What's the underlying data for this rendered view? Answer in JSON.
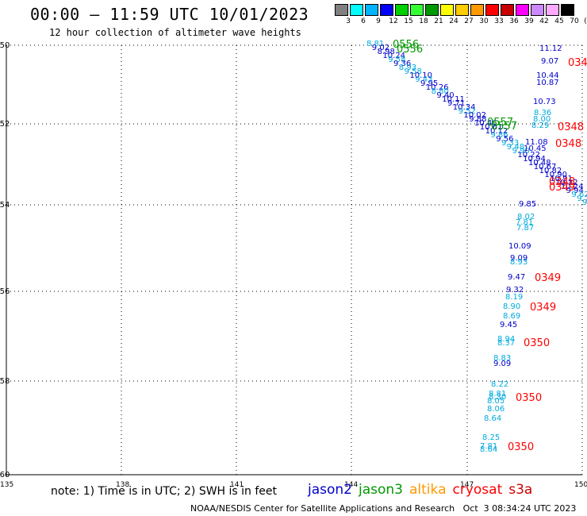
{
  "header": {
    "title": "00:00 – 11:59 UTC 10/01/2023",
    "subtitle": "12 hour collection of altimeter wave heights"
  },
  "scale": {
    "colors": [
      "#808080",
      "#00ffff",
      "#00b4ff",
      "#0000ff",
      "#00d000",
      "#33ff33",
      "#009900",
      "#ffff00",
      "#ffcc00",
      "#ff9900",
      "#ff0000",
      "#c80000",
      "#ff00ff",
      "#cc88ff",
      "#ffaaff",
      "#000000"
    ],
    "labels": [
      "3",
      "6",
      "9",
      "12",
      "15",
      "18",
      "21",
      "24",
      "27",
      "30",
      "33",
      "36",
      "39",
      "42",
      "45",
      "70",
      "(ft)"
    ]
  },
  "axes": {
    "lon_labels": [
      "135",
      "138",
      "141",
      "144",
      "147",
      "150"
    ],
    "lat_labels": [
      "-50",
      "-52",
      "-54",
      "-56",
      "-58",
      "-60"
    ]
  },
  "observations": [
    {
      "v": "8.81",
      "c": "#00aadd"
    },
    {
      "v": "9.02",
      "c": "#0000cc"
    },
    {
      "v": "8.98",
      "c": "#0000cc"
    },
    {
      "v": "10.24",
      "c": "#0000cc"
    },
    {
      "v": "9.58",
      "c": "#00aadd"
    },
    {
      "v": "9.36",
      "c": "#0000cc"
    },
    {
      "v": "8.93",
      "c": "#00aadd"
    },
    {
      "v": "9.58",
      "c": "#00aadd"
    },
    {
      "v": "10.10",
      "c": "#0000cc"
    },
    {
      "v": "9.43",
      "c": "#00aadd"
    },
    {
      "v": "9.95",
      "c": "#0000cc"
    },
    {
      "v": "10.26",
      "c": "#0000cc"
    },
    {
      "v": "8.80",
      "c": "#00aadd"
    },
    {
      "v": "9.40",
      "c": "#0000cc"
    },
    {
      "v": "10.11",
      "c": "#0000cc"
    },
    {
      "v": "9.71",
      "c": "#0000cc"
    },
    {
      "v": "10.34",
      "c": "#0000cc"
    },
    {
      "v": "9.52",
      "c": "#00aadd"
    },
    {
      "v": "10.02",
      "c": "#0000cc"
    },
    {
      "v": "9.88",
      "c": "#0000cc"
    },
    {
      "v": "10.46",
      "c": "#0000cc"
    },
    {
      "v": "10.61",
      "c": "#0000cc"
    },
    {
      "v": "10.12",
      "c": "#0000cc"
    },
    {
      "v": "9.86",
      "c": "#00aadd"
    },
    {
      "v": "9.56",
      "c": "#0000cc"
    },
    {
      "v": "9.33",
      "c": "#00aadd"
    },
    {
      "v": "9.48",
      "c": "#00aadd"
    },
    {
      "v": "9.90",
      "c": "#00aadd"
    },
    {
      "v": "10.22",
      "c": "#0000cc"
    },
    {
      "v": "10.94",
      "c": "#0000cc"
    },
    {
      "v": "10.48",
      "c": "#0000cc"
    },
    {
      "v": "10.67",
      "c": "#0000cc"
    },
    {
      "v": "10.82",
      "c": "#0000cc"
    },
    {
      "v": "10.90",
      "c": "#0000cc"
    },
    {
      "v": "10.91",
      "c": "#0000cc"
    },
    {
      "v": "10.32",
      "c": "#0000cc"
    },
    {
      "v": "10.24",
      "c": "#0000cc"
    },
    {
      "v": "9.94",
      "c": "#0000cc"
    },
    {
      "v": "9.62",
      "c": "#00aadd"
    },
    {
      "v": "9.73",
      "c": "#00aadd"
    },
    {
      "v": "9.8",
      "c": "#00aadd"
    },
    {
      "v": "11.12",
      "c": "#0000cc"
    },
    {
      "v": "9.07",
      "c": "#0000cc"
    },
    {
      "v": "10.44",
      "c": "#0000cc"
    },
    {
      "v": "10.87",
      "c": "#0000cc"
    },
    {
      "v": "10.73",
      "c": "#0000cc"
    },
    {
      "v": "8.36",
      "c": "#00aadd"
    },
    {
      "v": "8.00",
      "c": "#00aadd"
    },
    {
      "v": "8.29",
      "c": "#00aadd"
    },
    {
      "v": "11.08",
      "c": "#0000cc"
    },
    {
      "v": "10.45",
      "c": "#0000cc"
    },
    {
      "v": "9.85",
      "c": "#0000cc"
    },
    {
      "v": "8.02",
      "c": "#00aadd"
    },
    {
      "v": "7.81",
      "c": "#00aadd"
    },
    {
      "v": "7.87",
      "c": "#00aadd"
    },
    {
      "v": "10.09",
      "c": "#0000cc"
    },
    {
      "v": "9.09",
      "c": "#0000cc"
    },
    {
      "v": "8.93",
      "c": "#00aadd"
    },
    {
      "v": "9.47",
      "c": "#0000cc"
    },
    {
      "v": "9.32",
      "c": "#0000cc"
    },
    {
      "v": "8.19",
      "c": "#00aadd"
    },
    {
      "v": "8.90",
      "c": "#00aadd"
    },
    {
      "v": "8.69",
      "c": "#00aadd"
    },
    {
      "v": "9.45",
      "c": "#0000cc"
    },
    {
      "v": "8.94",
      "c": "#00aadd"
    },
    {
      "v": "8.37",
      "c": "#00aadd"
    },
    {
      "v": "8.83",
      "c": "#00aadd"
    },
    {
      "v": "9.09",
      "c": "#0000cc"
    },
    {
      "v": "8.22",
      "c": "#00aadd"
    },
    {
      "v": "8.81",
      "c": "#00aadd"
    },
    {
      "v": "8.30",
      "c": "#00aadd"
    },
    {
      "v": "8.05",
      "c": "#00aadd"
    },
    {
      "v": "8.06",
      "c": "#00aadd"
    },
    {
      "v": "8.64",
      "c": "#00aadd"
    },
    {
      "v": "8.25",
      "c": "#00aadd"
    },
    {
      "v": "7.81",
      "c": "#00aadd"
    },
    {
      "v": "8.64",
      "c": "#00aadd"
    }
  ],
  "cycles": [
    {
      "v": "0556",
      "c": "#009900"
    },
    {
      "v": "0556",
      "c": "#009900"
    },
    {
      "v": "0557",
      "c": "#009900"
    },
    {
      "v": "0557",
      "c": "#009900"
    },
    {
      "v": "034",
      "c": "#ff0000"
    },
    {
      "v": "0348",
      "c": "#ff0000"
    },
    {
      "v": "0348",
      "c": "#ff0000"
    },
    {
      "v": "0348",
      "c": "#ff0000"
    },
    {
      "v": "0349",
      "c": "#ff0000"
    },
    {
      "v": "0349",
      "c": "#ff0000"
    },
    {
      "v": "0349",
      "c": "#ff0000"
    },
    {
      "v": "0350",
      "c": "#ff0000"
    },
    {
      "v": "0350",
      "c": "#ff0000"
    },
    {
      "v": "0350",
      "c": "#ff0000"
    }
  ],
  "footer": {
    "note": "note: 1) Time is in UTC; 2) SWH is in feet",
    "satellites": [
      {
        "name": "jason2",
        "color": "#0000cc"
      },
      {
        "name": "jason3",
        "color": "#009900"
      },
      {
        "name": "altika",
        "color": "#ff9900"
      },
      {
        "name": "cryosat",
        "color": "#ff0000"
      },
      {
        "name": "s3a",
        "color": "#cc0000"
      }
    ],
    "credit": "NOAA/NESDIS Center for Satellite Applications and Research   Oct  3 08:34:24 UTC 2023"
  }
}
